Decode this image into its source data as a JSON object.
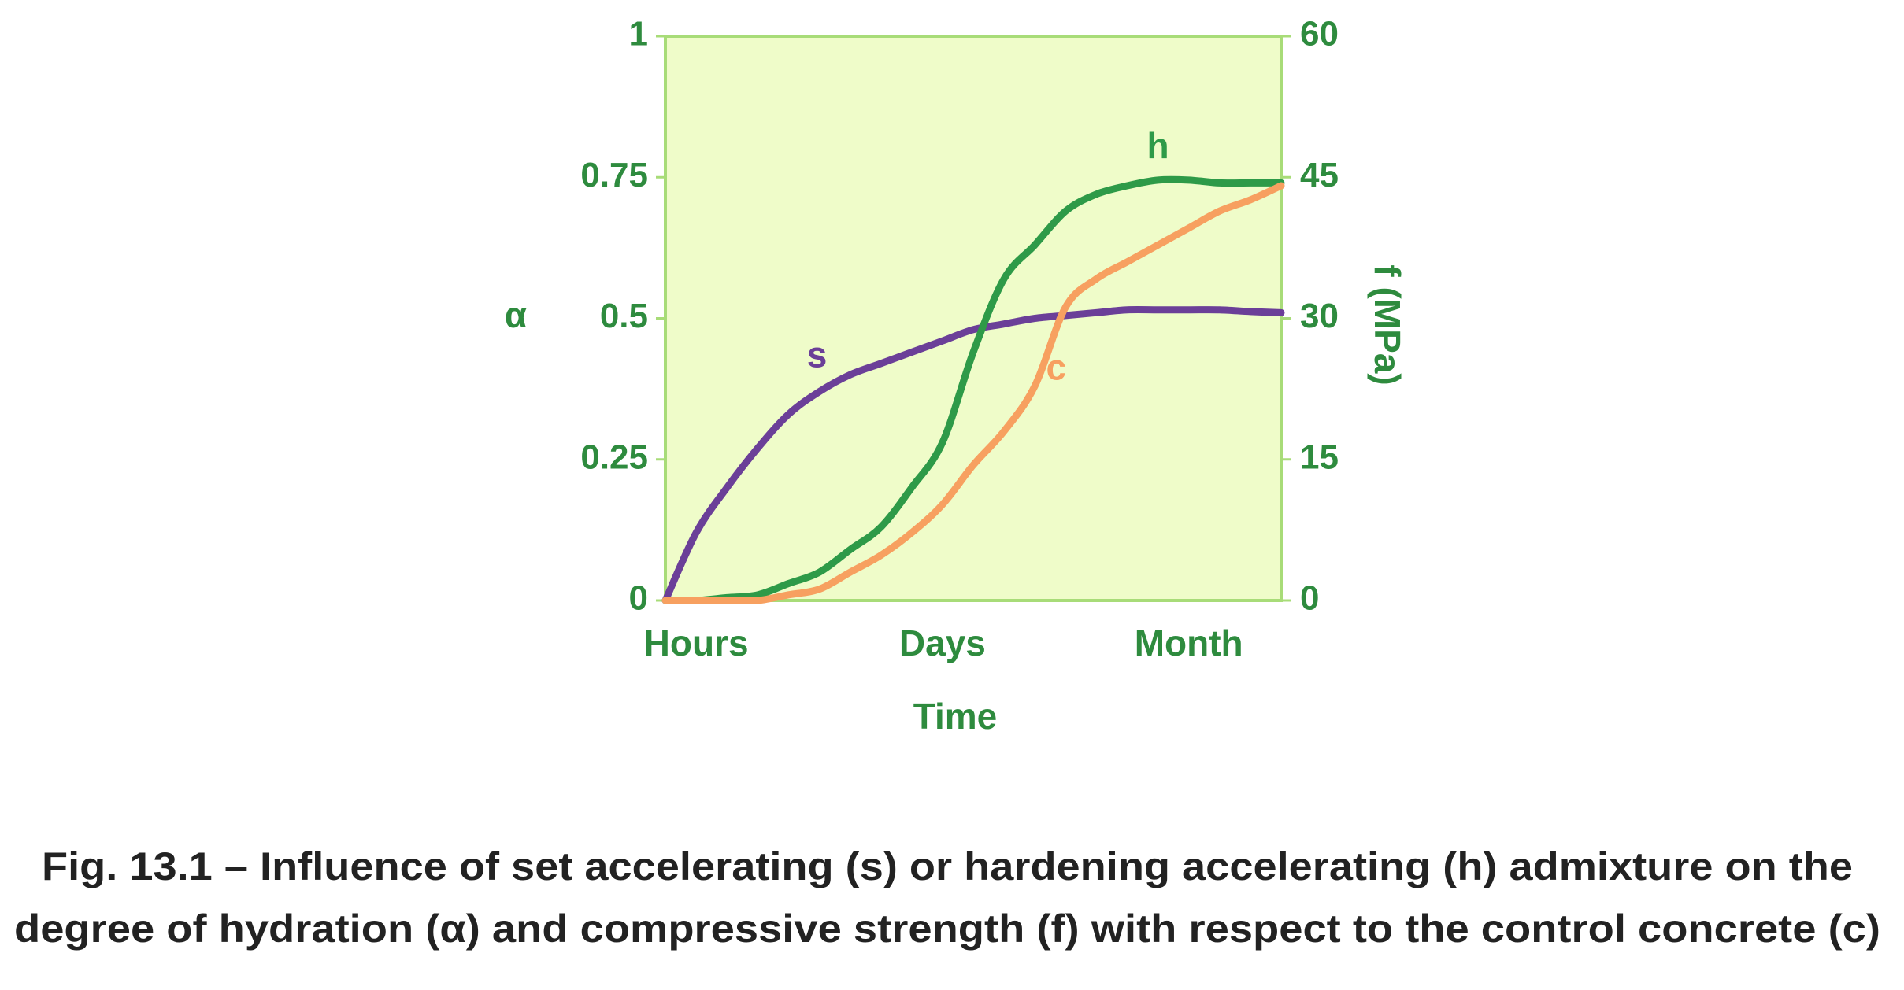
{
  "chart_data": {
    "type": "line",
    "x_label": "Time",
    "y_label": "α",
    "y2_label": "f (MPa)",
    "categories": [
      null,
      "Hours",
      null,
      null,
      null,
      null,
      null,
      null,
      null,
      "Days",
      null,
      null,
      null,
      null,
      null,
      null,
      null,
      "Month",
      null,
      null,
      null
    ],
    "ylim": [
      0,
      1
    ],
    "yticks": [
      0,
      0.25,
      0.5,
      0.75,
      1
    ],
    "y2lim": [
      0,
      60
    ],
    "y2ticks": [
      0,
      15,
      30,
      45,
      60
    ],
    "series": [
      {
        "name": "s",
        "color": "#6b3f98",
        "values": [
          0,
          0.12,
          0.2,
          0.27,
          0.33,
          0.37,
          0.4,
          0.42,
          0.44,
          0.46,
          0.48,
          0.49,
          0.5,
          0.505,
          0.51,
          0.515,
          0.515,
          0.515,
          0.515,
          0.512,
          0.51
        ]
      },
      {
        "name": "h",
        "color": "#2e9a48",
        "values": [
          0,
          0,
          0.005,
          0.01,
          0.03,
          0.05,
          0.09,
          0.13,
          0.2,
          0.28,
          0.44,
          0.57,
          0.63,
          0.69,
          0.72,
          0.735,
          0.745,
          0.745,
          0.74,
          0.74,
          0.74
        ]
      },
      {
        "name": "c",
        "color": "#f7a060",
        "values": [
          0,
          0,
          0,
          0,
          0.01,
          0.02,
          0.05,
          0.08,
          0.12,
          0.17,
          0.24,
          0.3,
          0.38,
          0.52,
          0.57,
          0.6,
          0.63,
          0.66,
          0.69,
          0.71,
          0.735
        ]
      }
    ],
    "background": "#effcc9",
    "frame_color": "#a8dc78",
    "caption": [
      "Fig. 13.1 – Influence of set accelerating (s) or hardening accelerating (h) admixture on the",
      "degree of hydration (α) and compressive strength (f) with respect to the control concrete (c)"
    ]
  }
}
